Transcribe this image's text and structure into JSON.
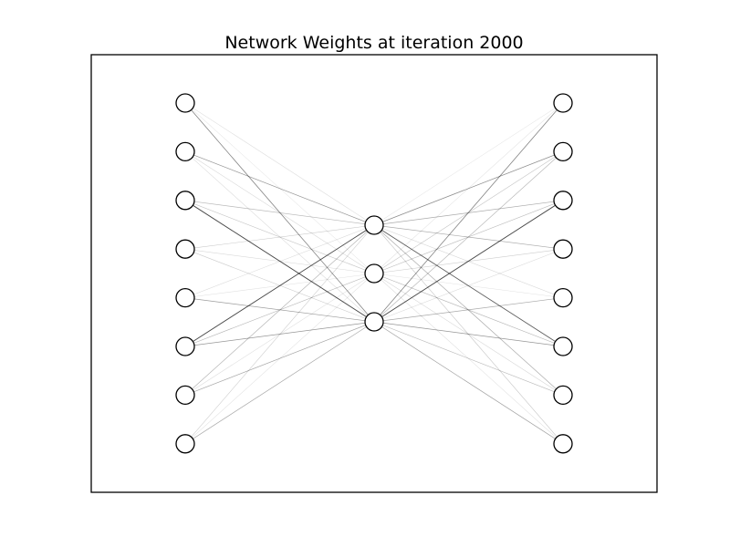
{
  "figure": {
    "title": "Network Weights at iteration 2000"
  },
  "network": {
    "layers": [
      {
        "name": "input",
        "nodes": 8
      },
      {
        "name": "hidden",
        "nodes": 3
      },
      {
        "name": "output",
        "nodes": 8
      }
    ],
    "weights": {
      "input_hidden": [
        [
          0.1,
          0.06,
          0.55
        ],
        [
          0.45,
          0.14,
          0.12
        ],
        [
          0.28,
          0.22,
          0.85
        ],
        [
          0.2,
          0.12,
          0.18
        ],
        [
          0.12,
          0.08,
          0.42
        ],
        [
          0.85,
          0.3,
          0.45
        ],
        [
          0.32,
          0.1,
          0.38
        ],
        [
          0.18,
          0.08,
          0.36
        ]
      ],
      "hidden_output": [
        [
          0.06,
          0.08,
          0.55
        ],
        [
          0.5,
          0.22,
          0.3
        ],
        [
          0.35,
          0.26,
          0.85
        ],
        [
          0.35,
          0.18,
          0.12
        ],
        [
          0.14,
          0.08,
          0.36
        ],
        [
          0.75,
          0.3,
          0.45
        ],
        [
          0.36,
          0.14,
          0.28
        ],
        [
          0.22,
          0.1,
          0.4
        ]
      ]
    },
    "edge_color": "#000000",
    "node_color": "#ffffff"
  }
}
